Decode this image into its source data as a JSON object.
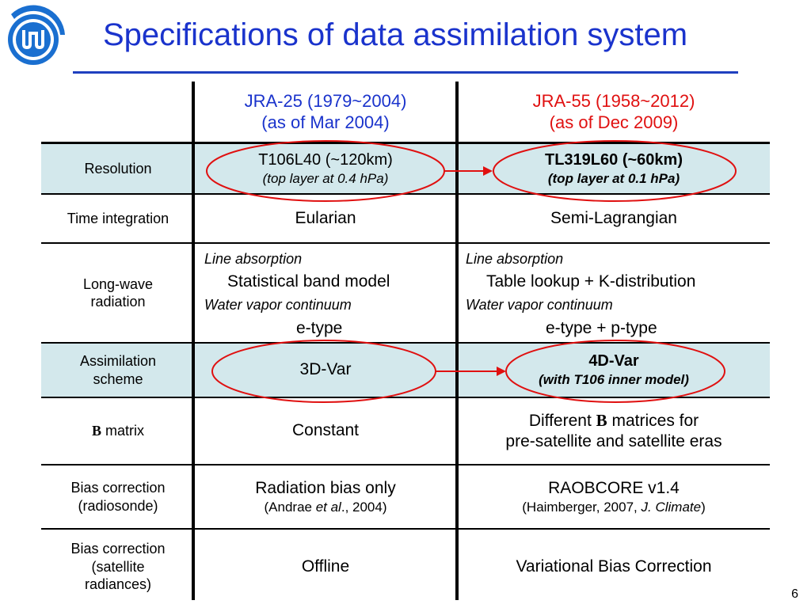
{
  "slide": {
    "title": "Specifications of data assimilation system",
    "page_number": "6",
    "logo_icon": "jma-logo-icon",
    "accent_color": "#1a33cc",
    "band_color": "#d3e8ec",
    "highlight_color": "#e01010"
  },
  "header": {
    "jra25_name": "JRA-25 (1979~2004)",
    "jra25_date": "(as of Mar 2004)",
    "jra55_name": "JRA-55 (1958~2012)",
    "jra55_date": "(as of Dec 2009)"
  },
  "rows": {
    "resolution": {
      "label": "Resolution",
      "jra25_main": "T106L40 (~120km)",
      "jra25_sub": "(top layer at 0.4 hPa)",
      "jra55_main": "TL319L60 (~60km)",
      "jra55_sub": "(top layer at 0.1 hPa)"
    },
    "time_integration": {
      "label": "Time integration",
      "jra25": "Eularian",
      "jra55": "Semi-Lagrangian"
    },
    "longwave": {
      "label_line1": "Long-wave",
      "label_line2": "radiation",
      "line_absorption": "Line absorption",
      "water_vapor": "Water vapor continuum",
      "jra25_line": "Statistical band model",
      "jra25_wv": "e-type",
      "jra55_line": "Table lookup + K-distribution",
      "jra55_wv": "e-type + p-type"
    },
    "assimilation": {
      "label_line1": "Assimilation",
      "label_line2": "scheme",
      "jra25": "3D-Var",
      "jra55_main": "4D-Var",
      "jra55_sub": "(with T106 inner model)"
    },
    "b_matrix": {
      "label_b": "B",
      "label_rest": " matrix",
      "jra25": "Constant",
      "jra55_pre": "Different ",
      "jra55_b": "B",
      "jra55_post": " matrices for",
      "jra55_line2": "pre-satellite and satellite eras"
    },
    "bias_radiosonde": {
      "label_line1": "Bias correction",
      "label_line2": "(radiosonde)",
      "jra25_main": "Radiation bias only",
      "jra25_ref_pre": "(Andrae ",
      "jra25_ref_it": "et al",
      "jra25_ref_post": "., 2004)",
      "jra55_main": "RAOBCORE v1.4",
      "jra55_ref_pre": "(Haimberger, 2007, ",
      "jra55_ref_it": "J. Climate",
      "jra55_ref_post": ")"
    },
    "bias_satellite": {
      "label_line1": "Bias correction",
      "label_line2": "(satellite",
      "label_line3": "radiances)",
      "jra25": "Offline",
      "jra55": "Variational Bias Correction"
    }
  }
}
